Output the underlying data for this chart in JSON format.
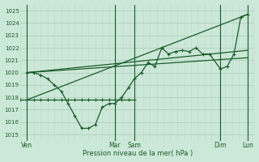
{
  "bg_color": "#cce8d8",
  "grid_color_h": "#a8cbb8",
  "grid_color_v": "#c0d8c8",
  "line_color": "#1a5c2a",
  "tick_label_color": "#1a5c2a",
  "xlabel": "Pression niveau de la mer( hPa )",
  "ylim": [
    1014.5,
    1025.5
  ],
  "yticks": [
    1015,
    1016,
    1017,
    1018,
    1019,
    1020,
    1021,
    1022,
    1023,
    1024,
    1025
  ],
  "xlim": [
    0,
    240
  ],
  "xtick_positions": [
    7,
    97,
    117,
    205,
    233
  ],
  "xtick_labels": [
    "Ven",
    "Mar",
    "Sam",
    "Dim",
    "Lun"
  ],
  "vline_positions": [
    7,
    97,
    117,
    205,
    233
  ],
  "main_series_x": [
    7,
    14,
    21,
    28,
    35,
    42,
    49,
    56,
    63,
    70,
    77,
    84,
    91,
    97,
    104,
    111,
    117,
    124,
    131,
    138,
    145,
    152,
    159,
    166,
    173,
    180,
    187,
    194,
    205,
    212,
    219,
    226,
    233
  ],
  "main_series_y": [
    1020.0,
    1020.0,
    1019.8,
    1019.5,
    1019.0,
    1018.5,
    1017.5,
    1016.5,
    1015.5,
    1015.5,
    1015.8,
    1017.2,
    1017.5,
    1017.5,
    1018.0,
    1018.8,
    1019.5,
    1020.0,
    1020.8,
    1020.5,
    1022.0,
    1021.5,
    1021.7,
    1021.8,
    1021.7,
    1022.0,
    1021.5,
    1021.5,
    1020.3,
    1020.5,
    1021.5,
    1024.5,
    1024.7
  ],
  "trend1_x": [
    7,
    233
  ],
  "trend1_y": [
    1020.0,
    1021.2
  ],
  "trend2_x": [
    7,
    233
  ],
  "trend2_y": [
    1020.0,
    1021.8
  ],
  "trend3_x": [
    7,
    233
  ],
  "trend3_y": [
    1017.8,
    1024.7
  ],
  "bottom_series_x": [
    0,
    7,
    14,
    21,
    28,
    35,
    42,
    49,
    56,
    63,
    70,
    77,
    84,
    91,
    97,
    104,
    111,
    117
  ],
  "bottom_series_y": [
    1017.8,
    1017.8,
    1017.8,
    1017.8,
    1017.8,
    1017.8,
    1017.8,
    1017.8,
    1017.8,
    1017.8,
    1017.8,
    1017.8,
    1017.8,
    1017.8,
    1017.8,
    1017.8,
    1017.8,
    1017.8
  ]
}
